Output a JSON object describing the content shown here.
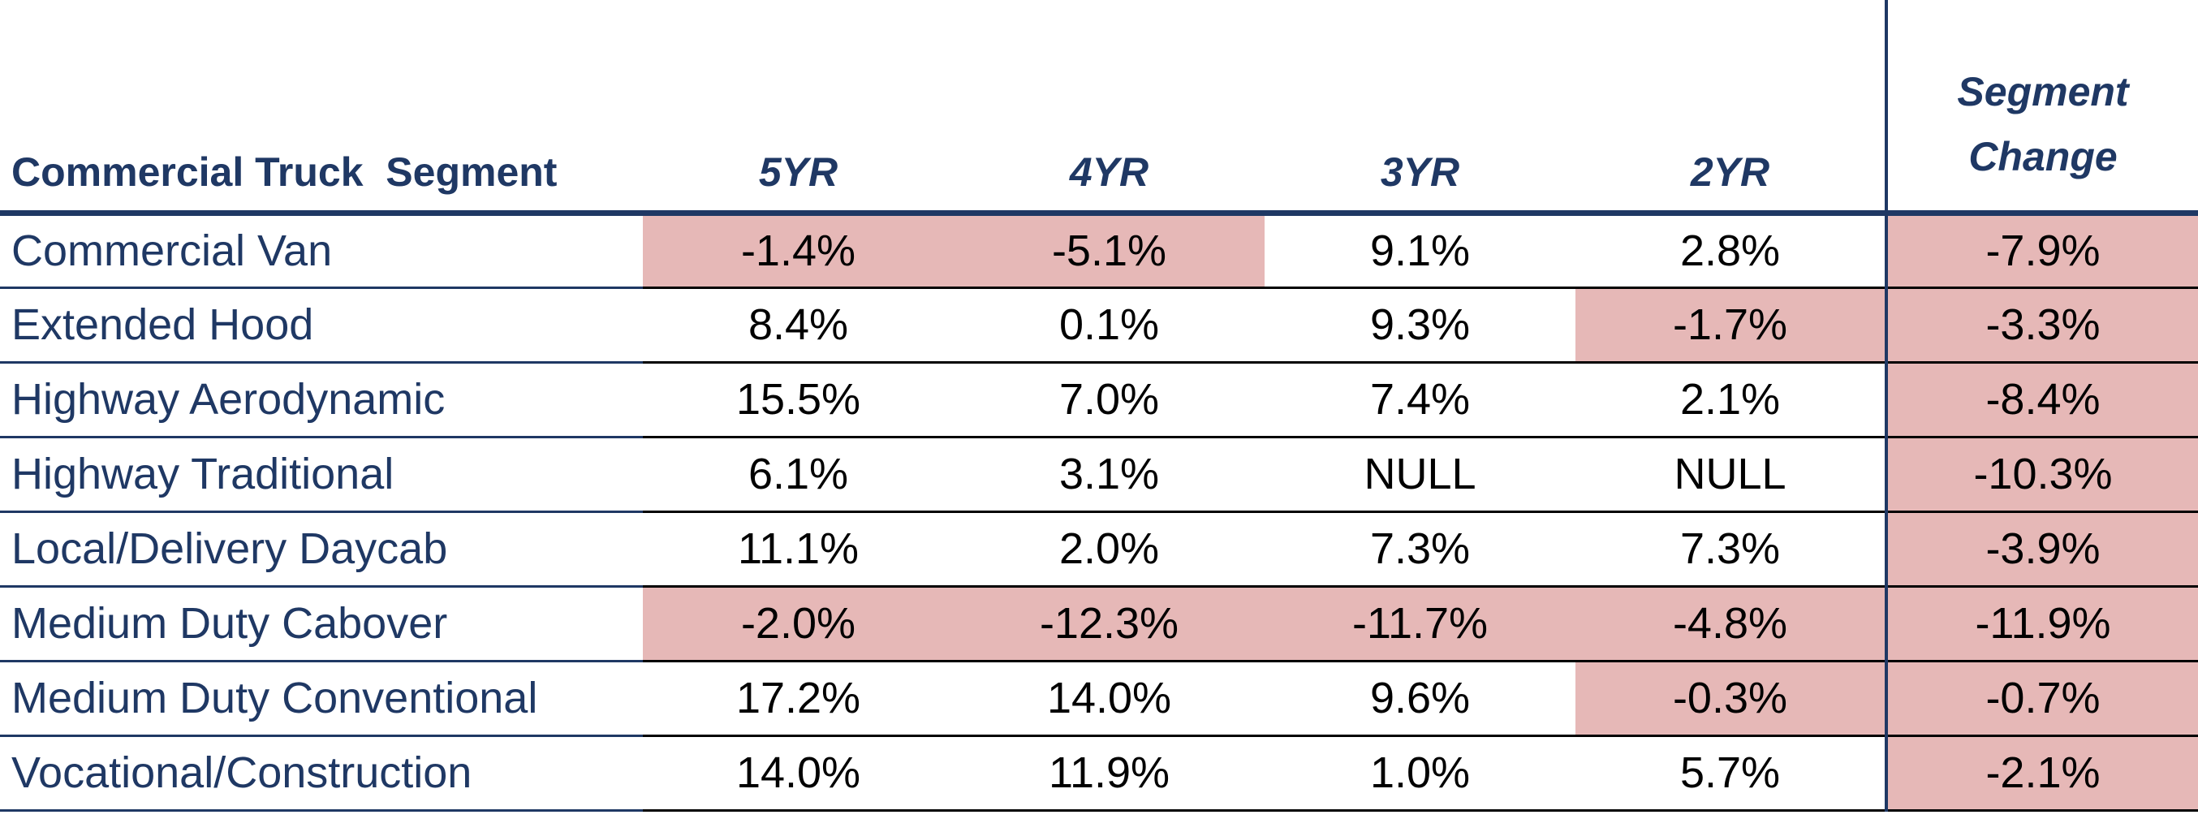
{
  "chart_data": {
    "type": "table",
    "columns": [
      "Commercial Truck  Segment",
      "5YR",
      "4YR",
      "3YR",
      "2YR",
      "Segment Change"
    ],
    "rows": [
      {
        "segment": "Commercial Van",
        "values": [
          "-1.4%",
          "-5.1%",
          "9.1%",
          "2.8%",
          "-7.9%"
        ]
      },
      {
        "segment": "Extended Hood",
        "values": [
          "8.4%",
          "0.1%",
          "9.3%",
          "-1.7%",
          "-3.3%"
        ]
      },
      {
        "segment": "Highway Aerodynamic",
        "values": [
          "15.5%",
          "7.0%",
          "7.4%",
          "2.1%",
          "-8.4%"
        ]
      },
      {
        "segment": "Highway Traditional",
        "values": [
          "6.1%",
          "3.1%",
          "NULL",
          "NULL",
          "-10.3%"
        ]
      },
      {
        "segment": "Local/Delivery Daycab",
        "values": [
          "11.1%",
          "2.0%",
          "7.3%",
          "7.3%",
          "-3.9%"
        ]
      },
      {
        "segment": "Medium Duty Cabover",
        "values": [
          "-2.0%",
          "-12.3%",
          "-11.7%",
          "-4.8%",
          "-11.9%"
        ]
      },
      {
        "segment": "Medium Duty Conventional",
        "values": [
          "17.2%",
          "14.0%",
          "9.6%",
          "-0.3%",
          "-0.7%"
        ]
      },
      {
        "segment": "Vocational/Construction",
        "values": [
          "14.0%",
          "11.9%",
          "1.0%",
          "5.7%",
          "-2.1%"
        ]
      }
    ],
    "colors": {
      "header_text": "#1f3864",
      "negative_fill": "#e6b8b7",
      "row_label_text": "#1f3864",
      "value_text": "#000000"
    }
  }
}
